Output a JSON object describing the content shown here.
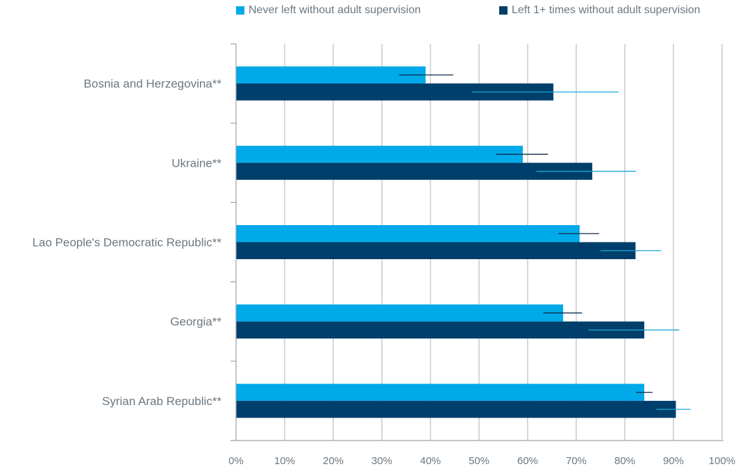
{
  "chart_data": {
    "type": "bar",
    "orientation": "horizontal",
    "categories": [
      "Bosnia and Herzegovina**",
      "Ukraine**",
      "Lao People's Democratic Republic**",
      "Georgia**",
      "Syrian Arab Republic**"
    ],
    "series": [
      {
        "name": "Never left without adult supervision",
        "color": "#00a9e8",
        "values": [
          39,
          59,
          70.7,
          67.3,
          84
        ],
        "error_low": [
          33.5,
          53.5,
          66.3,
          63.2,
          82.3
        ],
        "error_high": [
          44.7,
          64.2,
          74.7,
          71.2,
          85.7
        ],
        "error_color": "#0b2a4a"
      },
      {
        "name": "Left 1+ times without adult supervision",
        "color": "#003f6b",
        "values": [
          65.3,
          73.3,
          82.2,
          84,
          90.5
        ],
        "error_low": [
          48.5,
          61.8,
          75,
          72.5,
          86.5
        ],
        "error_high": [
          78.8,
          82.3,
          87.5,
          91.2,
          93.5
        ],
        "error_color": "#1ba6d8"
      }
    ],
    "xlim": [
      0,
      100
    ],
    "xticks": [
      "0%",
      "10%",
      "20%",
      "30%",
      "40%",
      "50%",
      "60%",
      "70%",
      "80%",
      "90%",
      "100%"
    ],
    "grid": "vertical",
    "legend_position": "top",
    "title": "",
    "xlabel": "",
    "ylabel": ""
  }
}
